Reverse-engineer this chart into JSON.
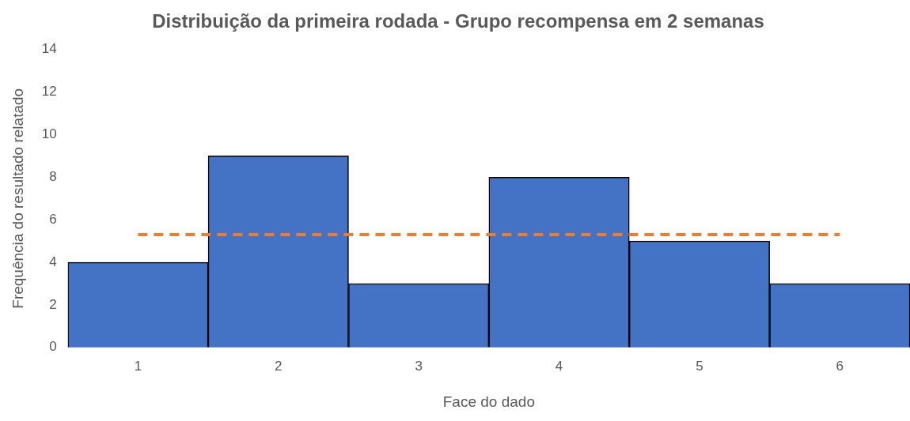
{
  "chart_data": {
    "type": "bar",
    "title": "Distribuição da primeira rodada - Grupo recompensa em 2 semanas",
    "xlabel": "Face do dado",
    "ylabel": "Frequência do resultado relatado",
    "categories": [
      "1",
      "2",
      "3",
      "4",
      "5",
      "6"
    ],
    "ylim": [
      0,
      14
    ],
    "yticks": [
      0,
      2,
      4,
      6,
      8,
      10,
      12,
      14
    ],
    "grid": false,
    "legend": false,
    "series": [
      {
        "color": "#4472c4",
        "values": [
          4,
          9,
          3,
          8,
          5,
          3
        ]
      },
      {
        "type": "line",
        "color": "#ed7d31",
        "line_style": "dashed",
        "marker": "none",
        "values": [
          5.3,
          5.3,
          5.3,
          5.3,
          5.3,
          5.3
        ]
      }
    ]
  }
}
